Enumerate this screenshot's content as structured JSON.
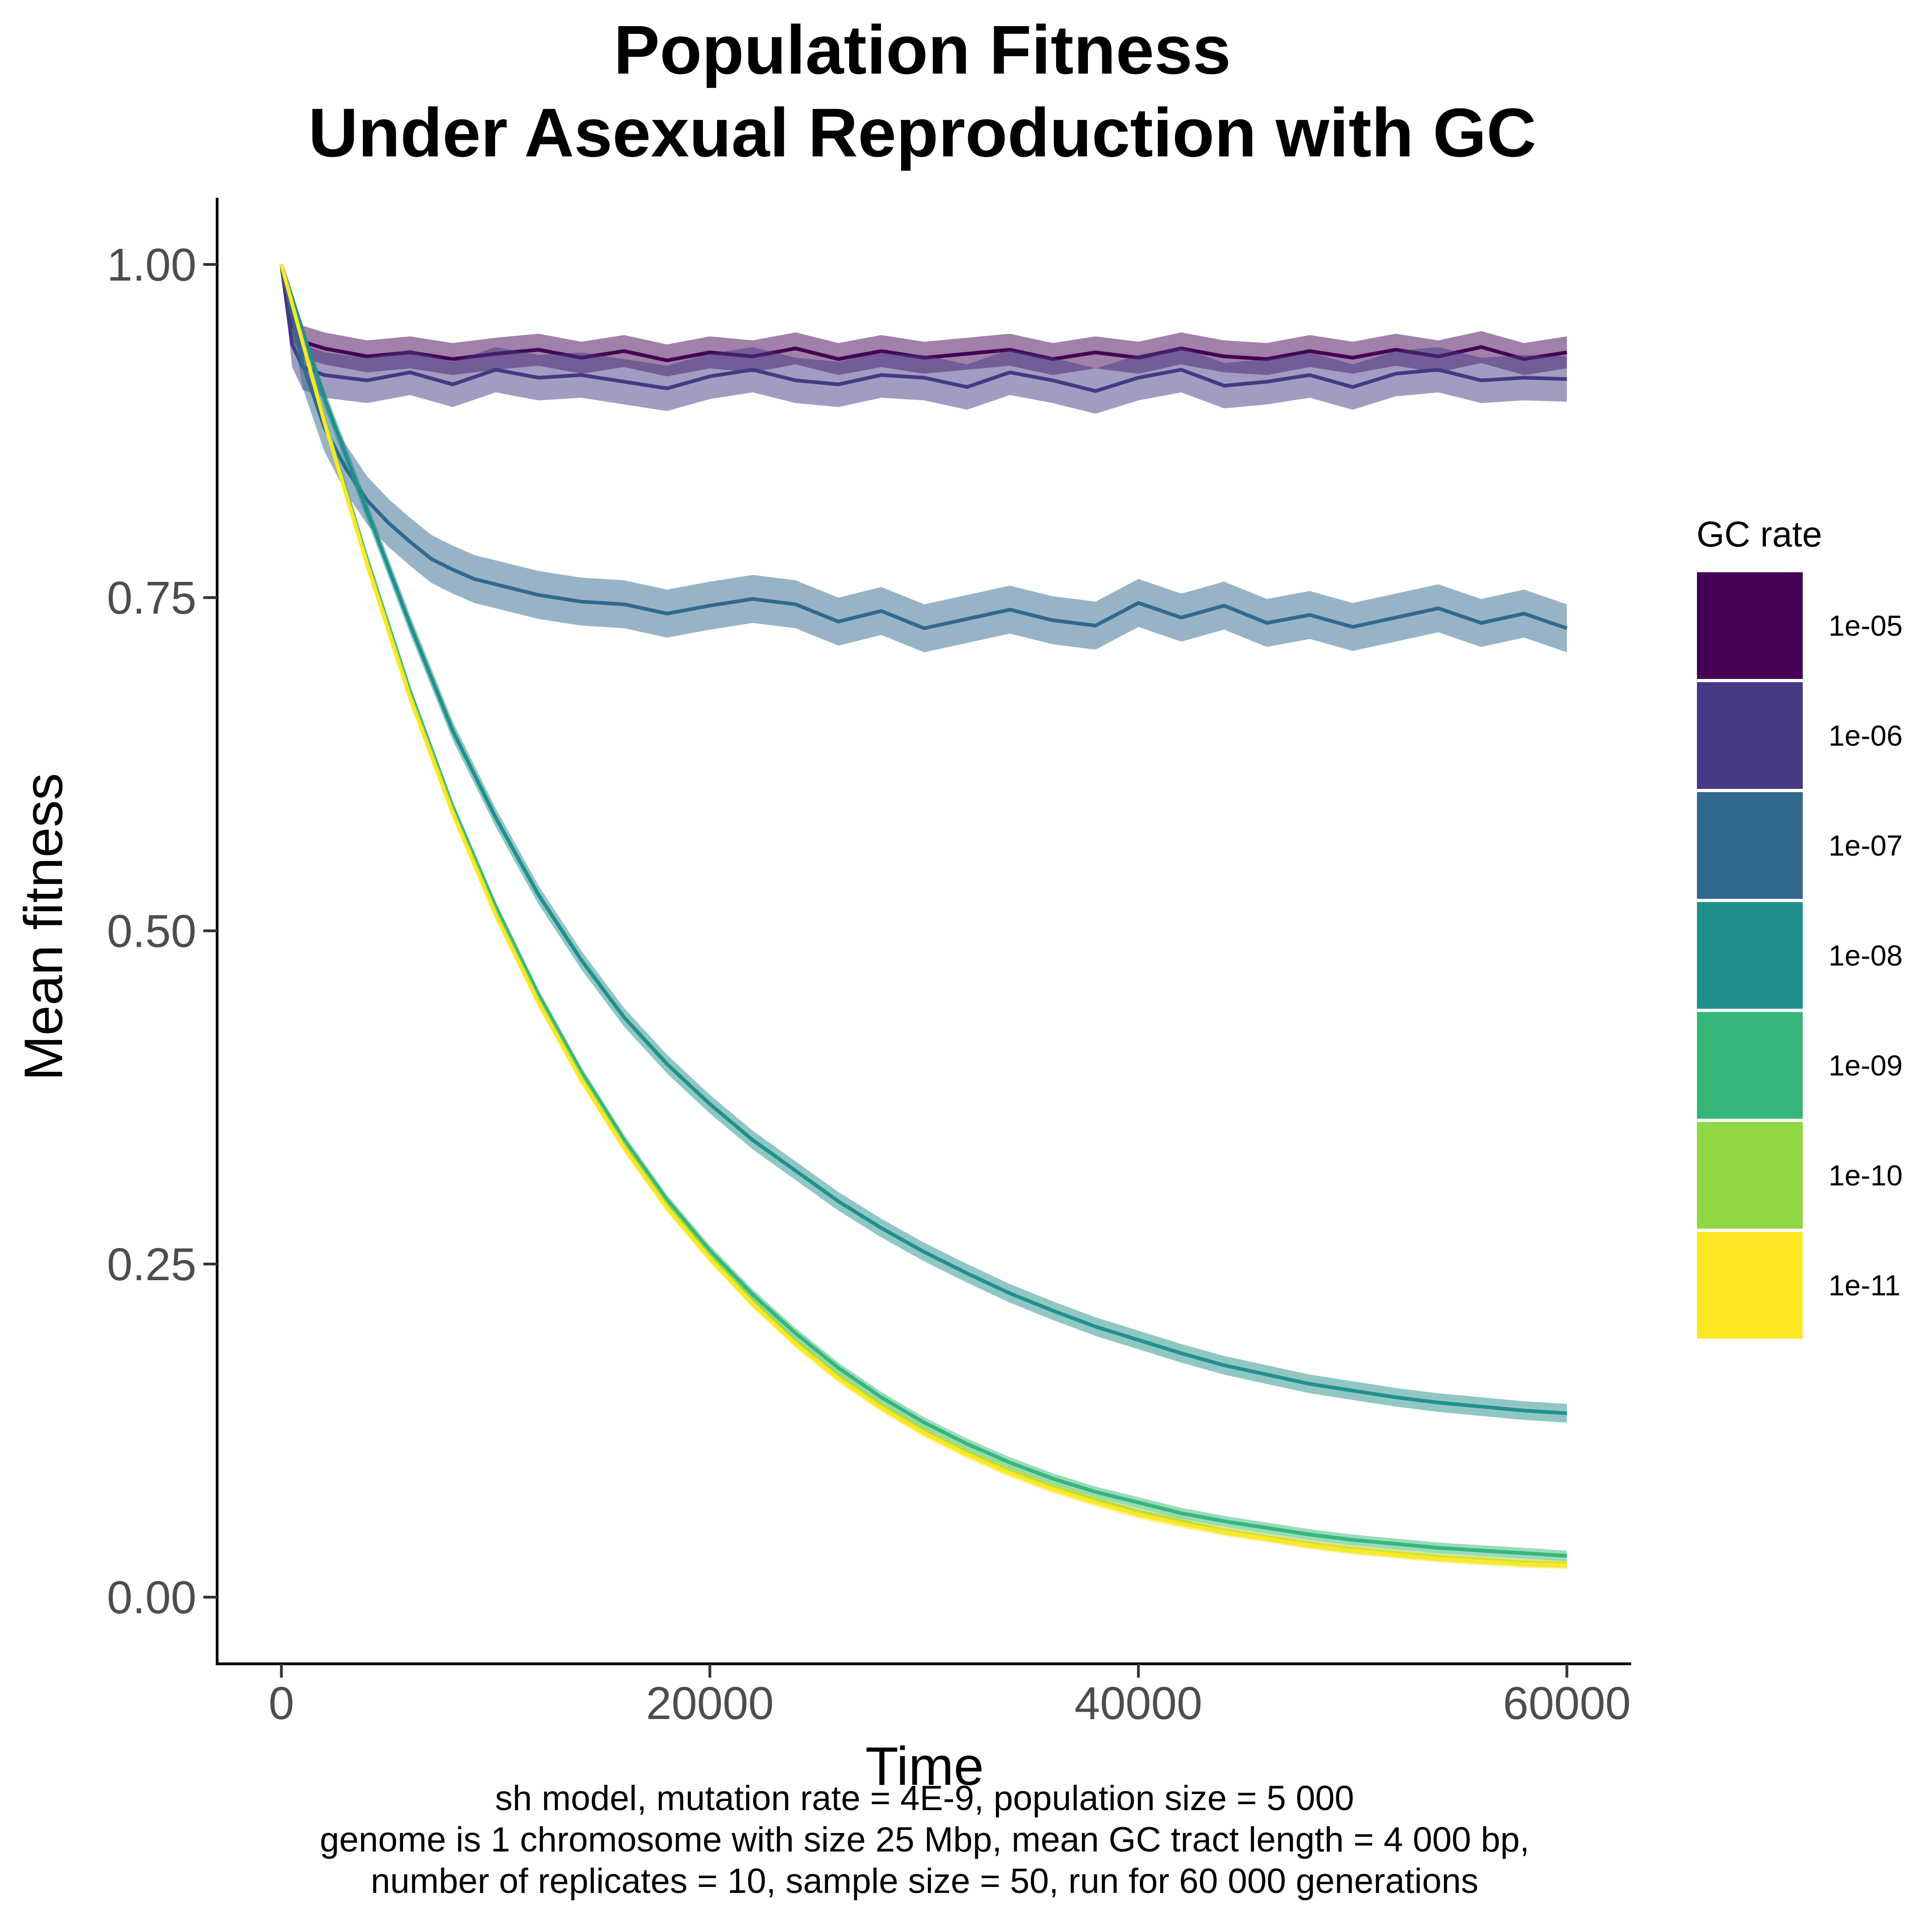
{
  "chart_data": {
    "type": "line",
    "title_lines": [
      "Population Fitness",
      "Under Asexual Reproduction with GC"
    ],
    "xlabel": "Time",
    "ylabel": "Mean fitness",
    "xlim": [
      -3000,
      63000
    ],
    "ylim": [
      -0.05,
      1.05
    ],
    "x_ticks": [
      0,
      20000,
      40000,
      60000
    ],
    "y_ticks": [
      0.0,
      0.25,
      0.5,
      0.75,
      1.0
    ],
    "x_tick_labels": [
      "0",
      "20000",
      "40000",
      "60000"
    ],
    "y_tick_labels": [
      "0.00",
      "0.25",
      "0.50",
      "0.75",
      "1.00"
    ],
    "grid": false,
    "legend": {
      "title": "GC rate",
      "position": "right",
      "entries": [
        "1e-05",
        "1e-06",
        "1e-07",
        "1e-08",
        "1e-09",
        "1e-10",
        "1e-11"
      ]
    },
    "caption_lines": [
      "sh model, mutation rate = 4E-9, population size = 5 000",
      "genome is 1 chromosome with size 25 Mbp, mean GC tract length = 4 000 bp,",
      "number of replicates = 10, sample size = 50, run for 60 000 generations"
    ],
    "series": [
      {
        "name": "1e-05",
        "color": "#440154",
        "band": 0.012,
        "x": [
          0,
          500,
          1000,
          2000,
          4000,
          6000,
          8000,
          10000,
          12000,
          14000,
          16000,
          18000,
          20000,
          22000,
          24000,
          26000,
          28000,
          30000,
          32000,
          34000,
          36000,
          38000,
          40000,
          42000,
          44000,
          46000,
          48000,
          50000,
          52000,
          54000,
          56000,
          58000,
          60000
        ],
        "values": [
          1.0,
          0.955,
          0.942,
          0.937,
          0.931,
          0.934,
          0.929,
          0.933,
          0.936,
          0.93,
          0.935,
          0.928,
          0.934,
          0.931,
          0.937,
          0.929,
          0.935,
          0.93,
          0.933,
          0.936,
          0.929,
          0.934,
          0.93,
          0.937,
          0.931,
          0.929,
          0.935,
          0.93,
          0.936,
          0.931,
          0.938,
          0.929,
          0.934
        ]
      },
      {
        "name": "1e-06",
        "color": "#443a83",
        "band": 0.017,
        "x": [
          0,
          500,
          1000,
          2000,
          4000,
          6000,
          8000,
          10000,
          12000,
          14000,
          16000,
          18000,
          20000,
          22000,
          24000,
          26000,
          28000,
          30000,
          32000,
          34000,
          36000,
          38000,
          40000,
          42000,
          44000,
          46000,
          48000,
          50000,
          52000,
          54000,
          56000,
          58000,
          60000
        ],
        "values": [
          1.0,
          0.94,
          0.923,
          0.917,
          0.913,
          0.919,
          0.91,
          0.921,
          0.915,
          0.917,
          0.912,
          0.907,
          0.916,
          0.921,
          0.913,
          0.91,
          0.917,
          0.915,
          0.908,
          0.919,
          0.913,
          0.905,
          0.915,
          0.921,
          0.909,
          0.912,
          0.917,
          0.908,
          0.918,
          0.921,
          0.913,
          0.915,
          0.914
        ]
      },
      {
        "name": "1e-07",
        "color": "#31688e",
        "band": 0.018,
        "x": [
          0,
          1000,
          2000,
          3000,
          4000,
          5000,
          6000,
          7000,
          8000,
          9000,
          10000,
          12000,
          14000,
          16000,
          18000,
          20000,
          22000,
          24000,
          26000,
          28000,
          30000,
          32000,
          34000,
          36000,
          38000,
          40000,
          42000,
          44000,
          46000,
          48000,
          50000,
          52000,
          54000,
          56000,
          58000,
          60000
        ],
        "values": [
          1.0,
          0.925,
          0.878,
          0.847,
          0.823,
          0.806,
          0.792,
          0.779,
          0.771,
          0.764,
          0.76,
          0.752,
          0.747,
          0.745,
          0.738,
          0.744,
          0.749,
          0.745,
          0.732,
          0.74,
          0.727,
          0.734,
          0.741,
          0.733,
          0.729,
          0.746,
          0.735,
          0.744,
          0.731,
          0.737,
          0.728,
          0.735,
          0.742,
          0.731,
          0.738,
          0.727
        ]
      },
      {
        "name": "1e-08",
        "color": "#21908c",
        "band": 0.007,
        "x": [
          0,
          2000,
          4000,
          6000,
          8000,
          10000,
          12000,
          14000,
          16000,
          18000,
          20000,
          22000,
          24000,
          26000,
          28000,
          30000,
          32000,
          34000,
          36000,
          38000,
          40000,
          42000,
          44000,
          46000,
          48000,
          50000,
          52000,
          54000,
          56000,
          58000,
          60000
        ],
        "values": [
          1.0,
          0.9,
          0.815,
          0.73,
          0.65,
          0.585,
          0.527,
          0.478,
          0.435,
          0.4,
          0.37,
          0.343,
          0.32,
          0.297,
          0.277,
          0.259,
          0.243,
          0.228,
          0.215,
          0.203,
          0.193,
          0.183,
          0.174,
          0.167,
          0.16,
          0.155,
          0.15,
          0.146,
          0.143,
          0.14,
          0.138
        ]
      },
      {
        "name": "1e-09",
        "color": "#35b779",
        "band": 0.004,
        "x": [
          0,
          2000,
          4000,
          6000,
          8000,
          10000,
          12000,
          14000,
          16000,
          18000,
          20000,
          22000,
          24000,
          26000,
          28000,
          30000,
          32000,
          34000,
          36000,
          38000,
          40000,
          42000,
          44000,
          46000,
          48000,
          50000,
          52000,
          54000,
          56000,
          58000,
          60000
        ],
        "values": [
          1.0,
          0.884,
          0.779,
          0.68,
          0.593,
          0.518,
          0.452,
          0.394,
          0.343,
          0.298,
          0.26,
          0.227,
          0.198,
          0.172,
          0.15,
          0.131,
          0.115,
          0.101,
          0.089,
          0.079,
          0.071,
          0.063,
          0.057,
          0.052,
          0.047,
          0.043,
          0.04,
          0.037,
          0.035,
          0.033,
          0.031
        ]
      },
      {
        "name": "1e-10",
        "color": "#8fd744",
        "band": 0.003,
        "x": [
          0,
          2000,
          4000,
          6000,
          8000,
          10000,
          12000,
          14000,
          16000,
          18000,
          20000,
          22000,
          24000,
          26000,
          28000,
          30000,
          32000,
          34000,
          36000,
          38000,
          40000,
          42000,
          44000,
          46000,
          48000,
          50000,
          52000,
          54000,
          56000,
          58000,
          60000
        ],
        "values": [
          1.0,
          0.883,
          0.777,
          0.677,
          0.59,
          0.514,
          0.448,
          0.39,
          0.339,
          0.294,
          0.256,
          0.222,
          0.192,
          0.166,
          0.144,
          0.125,
          0.109,
          0.095,
          0.083,
          0.073,
          0.064,
          0.057,
          0.05,
          0.045,
          0.04,
          0.036,
          0.033,
          0.03,
          0.028,
          0.026,
          0.025
        ]
      },
      {
        "name": "1e-11",
        "color": "#fde725",
        "band": 0.003,
        "x": [
          0,
          2000,
          4000,
          6000,
          8000,
          10000,
          12000,
          14000,
          16000,
          18000,
          20000,
          22000,
          24000,
          26000,
          28000,
          30000,
          32000,
          34000,
          36000,
          38000,
          40000,
          42000,
          44000,
          46000,
          48000,
          50000,
          52000,
          54000,
          56000,
          58000,
          60000
        ],
        "values": [
          1.0,
          0.882,
          0.775,
          0.675,
          0.588,
          0.512,
          0.446,
          0.388,
          0.337,
          0.292,
          0.254,
          0.22,
          0.19,
          0.164,
          0.142,
          0.123,
          0.107,
          0.093,
          0.081,
          0.071,
          0.062,
          0.055,
          0.049,
          0.044,
          0.039,
          0.035,
          0.032,
          0.029,
          0.027,
          0.025,
          0.024
        ]
      }
    ]
  }
}
